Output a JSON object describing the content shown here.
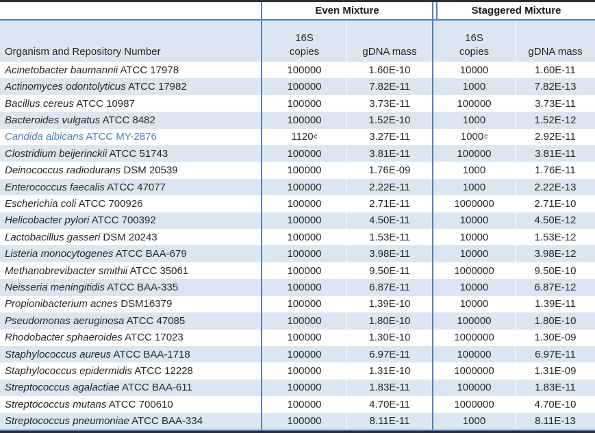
{
  "header": {
    "group_even": "Even Mixture",
    "group_staggered": "Staggered Mixture",
    "col_organism": "Organism and Repository Number",
    "col_16s": "16S",
    "col_copies": "copies",
    "col_mass": "gDNA mass"
  },
  "colors": {
    "stripe": "#dce6f1",
    "grid_blue": "#4f81bd",
    "outer_dark": "#2b2f38",
    "highlight_text": "#4f81bd",
    "text": "#262626"
  },
  "footnote_marker": "c",
  "rows": [
    {
      "organism": "Acinetobacter baumannii",
      "repository": "ATCC 17978",
      "even_copies": "100000",
      "even_copies_sup": "",
      "even_mass": "1.60E-10",
      "stag_copies": "10000",
      "stag_copies_sup": "",
      "stag_mass": "1.60E-11",
      "highlight": false
    },
    {
      "organism": "Actinomyces odontolyticus",
      "repository": "ATCC 17982",
      "even_copies": "100000",
      "even_copies_sup": "",
      "even_mass": "7.82E-11",
      "stag_copies": "1000",
      "stag_copies_sup": "",
      "stag_mass": "7.82E-13",
      "highlight": false
    },
    {
      "organism": "Bacillus cereus",
      "repository": "ATCC 10987",
      "even_copies": "100000",
      "even_copies_sup": "",
      "even_mass": "3.73E-11",
      "stag_copies": "100000",
      "stag_copies_sup": "",
      "stag_mass": "3.73E-11",
      "highlight": false
    },
    {
      "organism": "Bacteroides vulgatus",
      "repository": "ATCC 8482",
      "even_copies": "100000",
      "even_copies_sup": "",
      "even_mass": "1.52E-10",
      "stag_copies": "1000",
      "stag_copies_sup": "",
      "stag_mass": "1.52E-12",
      "highlight": false
    },
    {
      "organism": "Candida albicans",
      "repository": "ATCC MY-2876",
      "even_copies": "1120",
      "even_copies_sup": "c",
      "even_mass": "3.27E-11",
      "stag_copies": "1000",
      "stag_copies_sup": "c",
      "stag_mass": "2.92E-11",
      "highlight": true
    },
    {
      "organism": "Clostridium beijerinckii",
      "repository": "ATCC 51743",
      "even_copies": "100000",
      "even_copies_sup": "",
      "even_mass": "3.81E-11",
      "stag_copies": "100000",
      "stag_copies_sup": "",
      "stag_mass": "3.81E-11",
      "highlight": false
    },
    {
      "organism": "Deinococcus radiodurans",
      "repository": "DSM 20539",
      "even_copies": "100000",
      "even_copies_sup": "",
      "even_mass": "1.76E-09",
      "stag_copies": "1000",
      "stag_copies_sup": "",
      "stag_mass": "1.76E-11",
      "highlight": false
    },
    {
      "organism": "Enterococcus faecalis",
      "repository": "ATCC 47077",
      "even_copies": "100000",
      "even_copies_sup": "",
      "even_mass": "2.22E-11",
      "stag_copies": "1000",
      "stag_copies_sup": "",
      "stag_mass": "2.22E-13",
      "highlight": false
    },
    {
      "organism": "Escherichia coli",
      "repository": "ATCC 700926",
      "even_copies": "100000",
      "even_copies_sup": "",
      "even_mass": "2.71E-11",
      "stag_copies": "1000000",
      "stag_copies_sup": "",
      "stag_mass": "2.71E-10",
      "highlight": false
    },
    {
      "organism": "Helicobacter pylori",
      "repository": "ATCC 700392",
      "even_copies": "100000",
      "even_copies_sup": "",
      "even_mass": "4.50E-11",
      "stag_copies": "10000",
      "stag_copies_sup": "",
      "stag_mass": "4.50E-12",
      "highlight": false
    },
    {
      "organism": "Lactobacillus gasseri",
      "repository": "DSM 20243",
      "even_copies": "100000",
      "even_copies_sup": "",
      "even_mass": "1.53E-11",
      "stag_copies": "10000",
      "stag_copies_sup": "",
      "stag_mass": "1.53E-12",
      "highlight": false
    },
    {
      "organism": "Listeria monocytogenes",
      "repository": "ATCC BAA-679",
      "even_copies": "100000",
      "even_copies_sup": "",
      "even_mass": "3.98E-11",
      "stag_copies": "10000",
      "stag_copies_sup": "",
      "stag_mass": "3.98E-12",
      "highlight": false
    },
    {
      "organism": "Methanobrevibacter smithii",
      "repository": "ATCC 35061",
      "even_copies": "100000",
      "even_copies_sup": "",
      "even_mass": "9.50E-11",
      "stag_copies": "1000000",
      "stag_copies_sup": "",
      "stag_mass": "9.50E-10",
      "highlight": false
    },
    {
      "organism": "Neisseria meningitidis",
      "repository": "ATCC BAA-335",
      "even_copies": "100000",
      "even_copies_sup": "",
      "even_mass": "6.87E-11",
      "stag_copies": "10000",
      "stag_copies_sup": "",
      "stag_mass": "6.87E-12",
      "highlight": false
    },
    {
      "organism": "Propionibacterium acnes",
      "repository": "DSM16379",
      "even_copies": "100000",
      "even_copies_sup": "",
      "even_mass": "1.39E-10",
      "stag_copies": "10000",
      "stag_copies_sup": "",
      "stag_mass": "1.39E-11",
      "highlight": false
    },
    {
      "organism": "Pseudomonas aeruginosa",
      "repository": "ATCC 47085",
      "even_copies": "100000",
      "even_copies_sup": "",
      "even_mass": "1.80E-10",
      "stag_copies": "100000",
      "stag_copies_sup": "",
      "stag_mass": "1.80E-10",
      "highlight": false
    },
    {
      "organism": "Rhodobacter sphaeroides",
      "repository": "ATCC 17023",
      "even_copies": "100000",
      "even_copies_sup": "",
      "even_mass": "1.30E-10",
      "stag_copies": "1000000",
      "stag_copies_sup": "",
      "stag_mass": "1.30E-09",
      "highlight": false
    },
    {
      "organism": "Staphylococcus aureus",
      "repository": "ATCC BAA-1718",
      "even_copies": "100000",
      "even_copies_sup": "",
      "even_mass": "6.97E-11",
      "stag_copies": "100000",
      "stag_copies_sup": "",
      "stag_mass": "6.97E-11",
      "highlight": false
    },
    {
      "organism": "Staphylococcus epidermidis",
      "repository": "ATCC 12228",
      "even_copies": "100000",
      "even_copies_sup": "",
      "even_mass": "1.31E-10",
      "stag_copies": "1000000",
      "stag_copies_sup": "",
      "stag_mass": "1.31E-09",
      "highlight": false
    },
    {
      "organism": "Streptococcus agalactiae",
      "repository": "ATCC BAA-611",
      "even_copies": "100000",
      "even_copies_sup": "",
      "even_mass": "1.83E-11",
      "stag_copies": "100000",
      "stag_copies_sup": "",
      "stag_mass": "1.83E-11",
      "highlight": false
    },
    {
      "organism": "Streptococcus mutans",
      "repository": "ATCC 700610",
      "even_copies": "100000",
      "even_copies_sup": "",
      "even_mass": "4.70E-11",
      "stag_copies": "1000000",
      "stag_copies_sup": "",
      "stag_mass": "4.70E-10",
      "highlight": false
    },
    {
      "organism": "Streptococcus pneumoniae",
      "repository": "ATCC BAA-334",
      "even_copies": "100000",
      "even_copies_sup": "",
      "even_mass": "8.11E-11",
      "stag_copies": "1000",
      "stag_copies_sup": "",
      "stag_mass": "8.11E-13",
      "highlight": false
    }
  ]
}
